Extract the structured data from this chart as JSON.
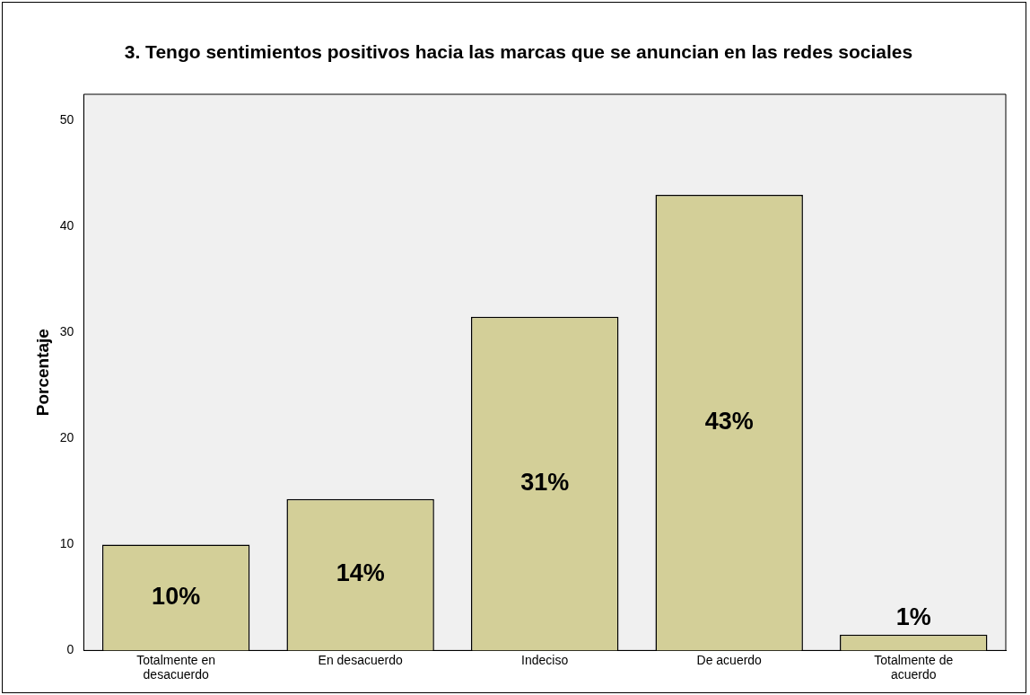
{
  "chart_data": {
    "type": "bar",
    "title": "3. Tengo sentimientos positivos hacia las marcas que se anuncian en las redes sociales",
    "ylabel": "Porcentaje",
    "categories": [
      "Totalmente en desacuerdo",
      "En desacuerdo",
      "Indeciso",
      "De acuerdo",
      "Totalmente de acuerdo"
    ],
    "values": [
      10,
      14.3,
      31.5,
      43,
      1.5
    ],
    "value_labels": [
      "10%",
      "14%",
      "31%",
      "43%",
      "1%"
    ],
    "color": "#d3cf98",
    "ylim": [
      0,
      52.5
    ],
    "yticks": [
      0,
      10,
      20,
      30,
      40,
      50
    ],
    "grid": false,
    "legend": false
  }
}
